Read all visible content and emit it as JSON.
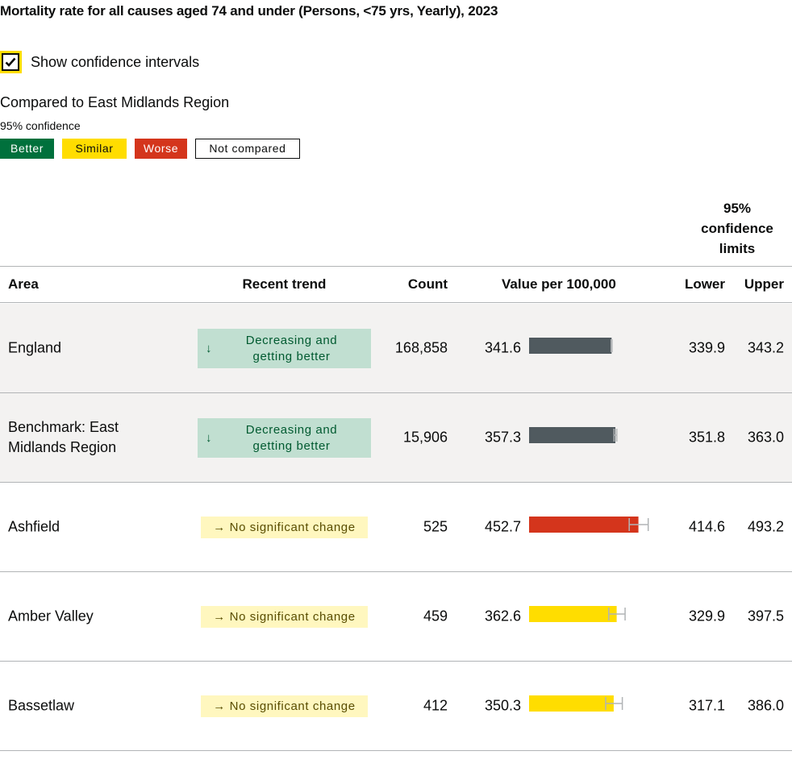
{
  "title": "Mortality rate for all causes aged 74 and under (Persons, <75 yrs, Yearly), 2023",
  "ci_toggle": {
    "label": "Show confidence intervals",
    "checked": true
  },
  "comparison": {
    "compared_to": "Compared to East Midlands Region",
    "confidence": "95% confidence",
    "legend": {
      "better": "Better",
      "similar": "Similar",
      "worse": "Worse",
      "not_compared": "Not compared"
    }
  },
  "colors": {
    "better": "#00703c",
    "similar": "#ffdd00",
    "worse": "#d4351c",
    "benchmark_bar": "#505a5f",
    "trend_decreasing_bg": "#c1dfd1",
    "trend_nochange_bg": "#fff7bf"
  },
  "table": {
    "ci_header": [
      "95%",
      "confidence",
      "limits"
    ],
    "headers": {
      "area": "Area",
      "trend": "Recent trend",
      "count": "Count",
      "value": "Value per 100,000",
      "lower": "Lower",
      "upper": "Upper"
    },
    "rows": [
      {
        "area": "England",
        "trend_type": "decreasing",
        "trend_arrow": "↓",
        "trend_line1": "Decreasing and",
        "trend_line2": "getting better",
        "count": "168,858",
        "value": "341.6",
        "lower": "339.9",
        "upper": "343.2",
        "status": "benchmark_bar"
      },
      {
        "area": "Benchmark: East Midlands Region",
        "trend_type": "decreasing",
        "trend_arrow": "↓",
        "trend_line1": "Decreasing and",
        "trend_line2": "getting better",
        "count": "15,906",
        "value": "357.3",
        "lower": "351.8",
        "upper": "363.0",
        "status": "benchmark_bar"
      },
      {
        "area": "Ashfield",
        "trend_type": "nochange",
        "trend_text": "→ No significant change",
        "count": "525",
        "value": "452.7",
        "lower": "414.6",
        "upper": "493.2",
        "status": "worse"
      },
      {
        "area": "Amber Valley",
        "trend_type": "nochange",
        "trend_text": "→ No significant change",
        "count": "459",
        "value": "362.6",
        "lower": "329.9",
        "upper": "397.5",
        "status": "similar"
      },
      {
        "area": "Bassetlaw",
        "trend_type": "nochange",
        "trend_text": "→ No significant change",
        "count": "412",
        "value": "350.3",
        "lower": "317.1",
        "upper": "386.0",
        "status": "similar"
      }
    ]
  }
}
